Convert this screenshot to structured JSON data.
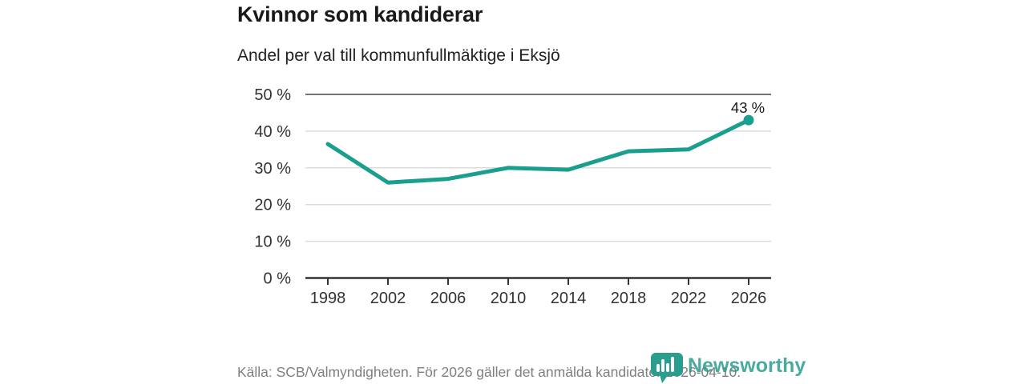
{
  "header": {
    "title": "Kvinnor som kandiderar",
    "subtitle": "Andel per val till kommunfullmäktige i Eksjö"
  },
  "chart_data": {
    "type": "line",
    "title": "Kvinnor som kandiderar",
    "subtitle": "Andel per val till kommunfullmäktige i Eksjö",
    "x": [
      1998,
      2002,
      2006,
      2010,
      2014,
      2018,
      2022,
      2026
    ],
    "values": [
      36.5,
      26,
      27,
      30,
      29.5,
      34.5,
      35,
      43
    ],
    "xticks": [
      "1998",
      "2002",
      "2006",
      "2010",
      "2014",
      "2018",
      "2022",
      "2026"
    ],
    "yticks": [
      "0 %",
      "10 %",
      "20 %",
      "30 %",
      "40 %",
      "50 %"
    ],
    "ylim": [
      0,
      50
    ],
    "ytick_step": 10,
    "grid": true,
    "legend": "none",
    "end_label": "43 %",
    "line_color": "#1a9e8e",
    "grid_color": "#dcdcdc",
    "top_border_color": "#757575",
    "axis_color": "#333333"
  },
  "footer": {
    "source": "Källa: SCB/Valmyndigheten. För 2026 gäller det anmälda kandidater 2026-04-10."
  },
  "logo": {
    "text": "Newsworthy",
    "color": "#2a9d8f",
    "icon": "newsworthy-pin-chart-icon"
  }
}
